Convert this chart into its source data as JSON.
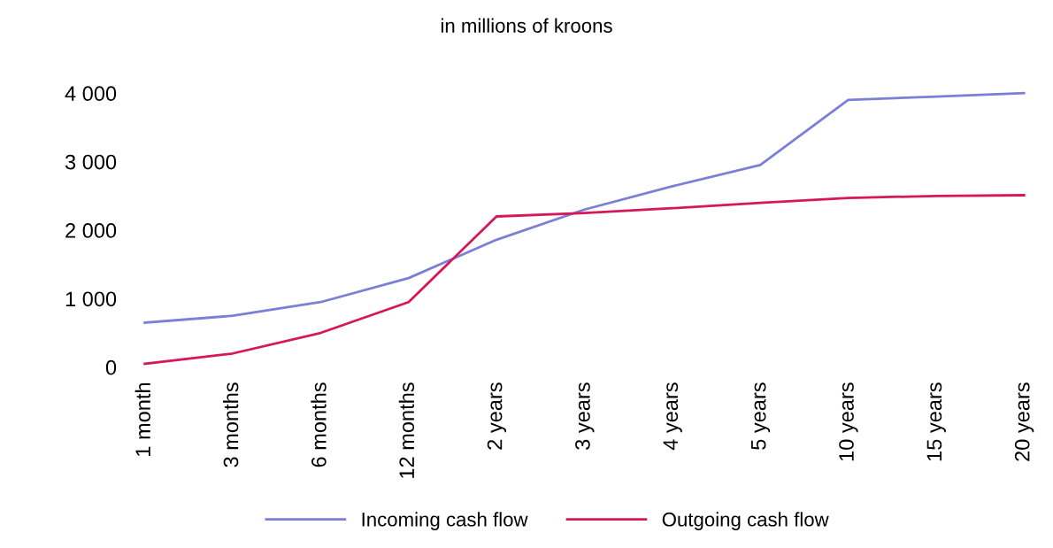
{
  "chart_data": {
    "type": "line",
    "title": "in millions of kroons",
    "categories": [
      "1 month",
      "3 months",
      "6 months",
      "12 months",
      "2 years",
      "3 years",
      "4 years",
      "5 years",
      "10 years",
      "15 years",
      "20 years"
    ],
    "series": [
      {
        "name": "Incoming cash flow",
        "color": "#7b7fd6",
        "values": [
          650,
          750,
          950,
          1300,
          1860,
          2300,
          2640,
          2950,
          3900,
          3950,
          4000
        ]
      },
      {
        "name": "Outgoing cash flow",
        "color": "#d6175a",
        "values": [
          50,
          200,
          500,
          950,
          2200,
          2250,
          2320,
          2400,
          2470,
          2500,
          2510
        ]
      }
    ],
    "ylim": [
      0,
      4000
    ],
    "yticks": [
      {
        "value": 0,
        "label": "0"
      },
      {
        "value": 1000,
        "label": "1 000"
      },
      {
        "value": 2000,
        "label": "2 000"
      },
      {
        "value": 3000,
        "label": "3 000"
      },
      {
        "value": 4000,
        "label": "4 000"
      }
    ],
    "grid": false,
    "legend": "bottom",
    "marker": "none",
    "line_style": "solid"
  }
}
